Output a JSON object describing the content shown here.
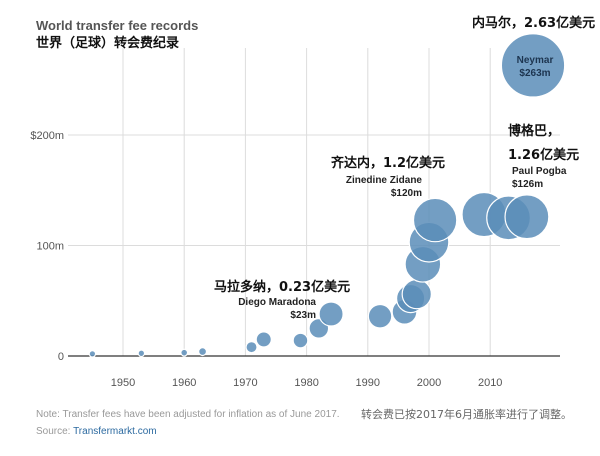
{
  "chart_data": {
    "type": "scatter",
    "title": "World transfer fee records",
    "subtitle": "世界（足球）转会费纪录",
    "x_ticks": [
      "1950",
      "1960",
      "1970",
      "1980",
      "1990",
      "2000",
      "2010"
    ],
    "y_ticks": [
      "0",
      "100m",
      "$200m"
    ],
    "xlim": [
      1942,
      2021
    ],
    "ylim": [
      0,
      300
    ],
    "x_tick_values": [
      1950,
      1960,
      1970,
      1980,
      1990,
      2000,
      2010
    ],
    "y_tick_values": [
      0,
      100,
      200
    ],
    "points": [
      {
        "x": 1945,
        "y": 2
      },
      {
        "x": 1953,
        "y": 2.5
      },
      {
        "x": 1960,
        "y": 3
      },
      {
        "x": 1963,
        "y": 4
      },
      {
        "x": 1971,
        "y": 8
      },
      {
        "x": 1973,
        "y": 15
      },
      {
        "x": 1979,
        "y": 14
      },
      {
        "x": 1982,
        "y": 25
      },
      {
        "x": 1984,
        "y": 38
      },
      {
        "x": 1992,
        "y": 36
      },
      {
        "x": 1996,
        "y": 40
      },
      {
        "x": 1997,
        "y": 52
      },
      {
        "x": 1998,
        "y": 56
      },
      {
        "x": 1999,
        "y": 83
      },
      {
        "x": 2000,
        "y": 103
      },
      {
        "x": 2001,
        "y": 123
      },
      {
        "x": 2009,
        "y": 128
      },
      {
        "x": 2013,
        "y": 125
      },
      {
        "x": 2016,
        "y": 126
      },
      {
        "x": 2017,
        "y": 263
      }
    ],
    "annotations": [
      {
        "label_zh": "马拉多纳，0.23亿美元",
        "label_en": "Diego Maradona",
        "value": "$23m"
      },
      {
        "label_zh": "齐达内，1.2亿美元",
        "label_en": "Zinedine Zidane",
        "value": "$120m"
      },
      {
        "label_zh": "博格巴，",
        "label_zh2": "1.26亿美元",
        "label_en": "Paul Pogba",
        "value": "$126m"
      },
      {
        "label_zh": "内马尔，2.63亿美元",
        "label_en": "Neymar",
        "value": "$263m"
      }
    ],
    "note": "Note: Transfer fees have been adjusted for inflation as of June 2017.",
    "note_zh": "转会费已按2017年6月通胀率进行了调整。",
    "source_prefix": "Source: ",
    "source_name": "Transfermarkt.com",
    "colors": {
      "bubble": "#5b8db8",
      "grid": "#dcdcdc",
      "text": "#222222",
      "link": "#2c6aa0"
    },
    "grid": true
  }
}
